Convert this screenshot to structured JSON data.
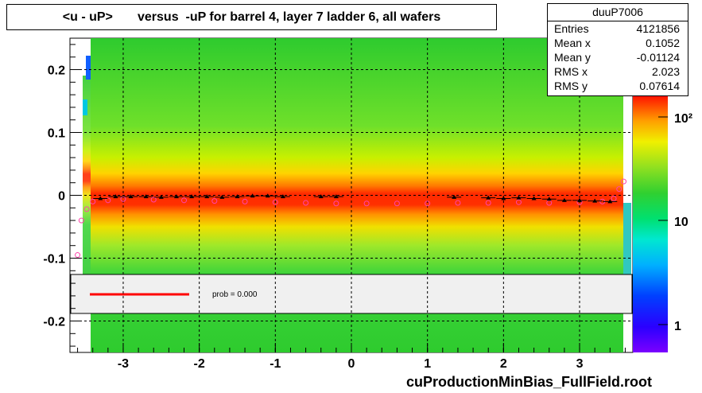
{
  "title": "<u - uP>       versus  -uP for barrel 4, layer 7 ladder 6, all wafers",
  "stats": {
    "name": "duuP7006",
    "rows": [
      {
        "key": "Entries",
        "value": "4121856"
      },
      {
        "key": "Mean x",
        "value": "0.1052"
      },
      {
        "key": "Mean y",
        "value": "-0.01124"
      },
      {
        "key": "RMS x",
        "value": "2.023"
      },
      {
        "key": "RMS y",
        "value": "0.07614"
      }
    ]
  },
  "legend": {
    "label": "prob = 0.000",
    "line_color": "#ff0000"
  },
  "footer": "cuProductionMinBias_FullField.root",
  "chart_data": {
    "type": "heatmap",
    "title": "<u - uP>       versus  -uP for barrel 4, layer 7 ladder 6, all wafers",
    "xlabel": "",
    "ylabel": "",
    "xlim": [
      -3.7,
      3.7
    ],
    "ylim": [
      -0.25,
      0.25
    ],
    "x_ticks": [
      -3,
      -2,
      -1,
      0,
      1,
      2,
      3
    ],
    "y_ticks": [
      -0.2,
      -0.1,
      0,
      0.1,
      0.2
    ],
    "grid": true,
    "colorbar": {
      "scale": "log",
      "ticks": [
        "1",
        "10",
        "10²"
      ]
    },
    "profile_black": {
      "x": [
        -3.3,
        -3.1,
        -2.9,
        -2.7,
        -2.5,
        -2.3,
        -2.1,
        -1.9,
        -1.7,
        -1.5,
        -1.3,
        -1.1,
        -0.9,
        -0.4,
        -0.2,
        1.35,
        1.8,
        2.0,
        2.2,
        2.4,
        2.6,
        2.8,
        3.0,
        3.2,
        3.4
      ],
      "y": [
        -0.005,
        -0.002,
        -0.002,
        -0.002,
        -0.003,
        -0.002,
        -0.002,
        -0.002,
        -0.003,
        -0.002,
        -0.001,
        -0.001,
        -0.002,
        -0.002,
        -0.002,
        -0.003,
        -0.004,
        -0.005,
        -0.004,
        -0.005,
        -0.006,
        -0.008,
        -0.008,
        -0.009,
        -0.01
      ]
    },
    "profile_pink": {
      "x": [
        -3.6,
        -3.55,
        -3.48,
        -3.4,
        -3.2,
        -3.0,
        -2.6,
        -2.2,
        -1.8,
        -1.4,
        -1.0,
        -0.6,
        -0.2,
        0.2,
        0.6,
        1.0,
        1.4,
        1.8,
        2.2,
        2.6,
        3.0,
        3.3,
        3.45,
        3.52,
        3.58
      ],
      "y": [
        -0.095,
        -0.04,
        -0.022,
        -0.01,
        -0.008,
        -0.006,
        -0.007,
        -0.008,
        -0.009,
        -0.01,
        -0.011,
        -0.012,
        -0.013,
        -0.013,
        -0.013,
        -0.013,
        -0.012,
        -0.012,
        -0.011,
        -0.012,
        -0.011,
        -0.01,
        -0.005,
        0.01,
        0.022
      ]
    }
  }
}
